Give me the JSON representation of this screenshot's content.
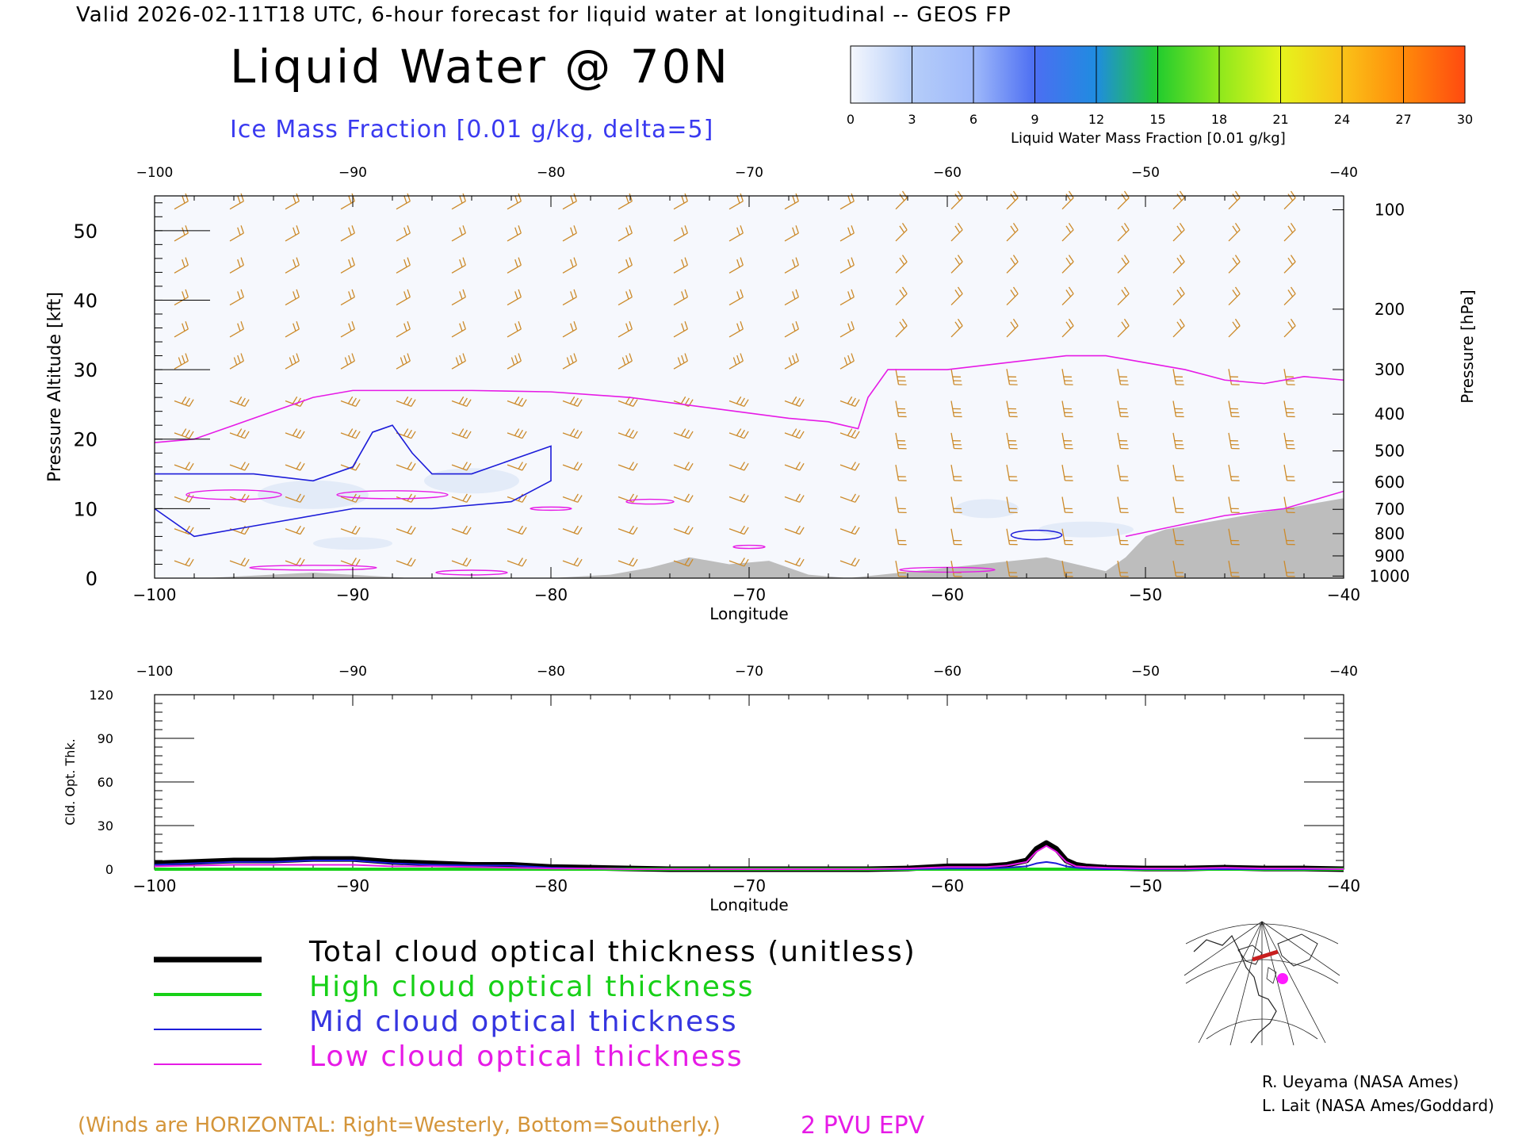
{
  "header": "Valid 2026-02-11T18 UTC, 6-hour forecast for liquid water at longitudinal -- GEOS FP",
  "title": "Liquid Water @ 70N",
  "overlay_label": "Ice Mass Fraction [0.01 g/kg, delta=5]",
  "colorbar": {
    "label": "Liquid Water Mass Fraction [0.01 g/kg]",
    "ticks": [
      "0",
      "3",
      "6",
      "9",
      "12",
      "15",
      "18",
      "21",
      "24",
      "27",
      "30"
    ],
    "colors": [
      "#f4f7fd",
      "#b5cdf9",
      "#9fb9fa",
      "#4c6ef2",
      "#1f8ce0",
      "#23cc2e",
      "#8ee81c",
      "#e6f41c",
      "#fac318",
      "#ff8a0a",
      "#ff4a10"
    ]
  },
  "chart_data": [
    {
      "type": "heatmap",
      "xlabel": "Longitude",
      "ylabel": "Pressure Altitude [kft]",
      "ylabel_right": "Pressure [hPa]",
      "x_ticks": [
        "−100",
        "−90",
        "−80",
        "−70",
        "−60",
        "−50",
        "−40"
      ],
      "x_tick_values": [
        -100,
        -90,
        -80,
        -70,
        -60,
        -50,
        -40
      ],
      "y_ticks": [
        "0",
        "10",
        "20",
        "30",
        "40",
        "50"
      ],
      "y_tick_values": [
        0,
        10,
        20,
        30,
        40,
        50
      ],
      "xlim": [
        -100,
        -40
      ],
      "ylim": [
        0,
        55
      ],
      "pressure_ticks": [
        {
          "label": "100",
          "kft": 53.0
        },
        {
          "label": "200",
          "kft": 38.7
        },
        {
          "label": "300",
          "kft": 30.0
        },
        {
          "label": "400",
          "kft": 23.6
        },
        {
          "label": "500",
          "kft": 18.3
        },
        {
          "label": "600",
          "kft": 13.8
        },
        {
          "label": "700",
          "kft": 9.9
        },
        {
          "label": "800",
          "kft": 6.4
        },
        {
          "label": "900",
          "kft": 3.2
        },
        {
          "label": "1000",
          "kft": 0.3
        }
      ],
      "epv_2pvu_line": {
        "x": [
          -100,
          -98,
          -96,
          -94,
          -92,
          -90,
          -88,
          -84,
          -80,
          -76,
          -72,
          -68,
          -66,
          -64.5,
          -64,
          -63,
          -60,
          -57,
          -54,
          -52,
          -50,
          -48,
          -46,
          -44,
          -42,
          -40
        ],
        "y": [
          19.5,
          20,
          22,
          24,
          26,
          27,
          27,
          27,
          26.8,
          26,
          24.5,
          23,
          22.5,
          21.5,
          26,
          30,
          30,
          31,
          32,
          32,
          31,
          30,
          28.5,
          28,
          29,
          28.5
        ]
      },
      "ice_contour": {
        "x": [
          -100,
          -95,
          -92,
          -90,
          -89,
          -88,
          -87,
          -86,
          -84,
          -82,
          -80,
          -80,
          -82,
          -86,
          -90,
          -94,
          -98,
          -100
        ],
        "y": [
          15,
          15,
          14,
          16,
          21,
          22,
          18,
          15,
          15,
          17,
          19,
          14,
          11,
          10,
          10,
          8,
          6,
          10
        ]
      },
      "terrain": {
        "x": [
          -100,
          -97.5,
          -92,
          -87,
          -80,
          -77,
          -75,
          -73,
          -71,
          -69,
          -67,
          -65,
          -55,
          -52,
          -51,
          -50,
          -49,
          -47,
          -45,
          -43,
          -40
        ],
        "y": [
          0,
          0,
          0.8,
          0,
          0,
          0.5,
          1.5,
          3,
          2,
          2.5,
          0.5,
          0,
          3,
          1,
          3,
          6,
          7,
          8,
          9,
          10,
          11.5
        ]
      }
    },
    {
      "type": "line",
      "xlabel": "Longitude",
      "ylabel": "Cld. Opt. Thk.",
      "x_ticks": [
        "−100",
        "−90",
        "−80",
        "−70",
        "−60",
        "−50",
        "−40"
      ],
      "x_tick_values": [
        -100,
        -90,
        -80,
        -70,
        -60,
        -50,
        -40
      ],
      "y_ticks": [
        "0",
        "30",
        "60",
        "90",
        "120"
      ],
      "y_tick_values": [
        0,
        30,
        60,
        90,
        120
      ],
      "xlim": [
        -100,
        -40
      ],
      "ylim": [
        0,
        120
      ],
      "x": [
        -100,
        -98,
        -96,
        -94,
        -92,
        -90,
        -88,
        -86,
        -84,
        -82,
        -80,
        -78,
        -76,
        -74,
        -72,
        -70,
        -68,
        -66,
        -64,
        -62,
        -60,
        -58,
        -57,
        -56,
        -55.5,
        -55,
        -54.5,
        -54,
        -53.5,
        -53,
        -52,
        -50,
        -48,
        -46,
        -44,
        -42,
        -40
      ],
      "series": [
        {
          "name": "Total cloud optical thickness (unitless)",
          "color": "#000000",
          "values": [
            4,
            5,
            6,
            6,
            7,
            7,
            5,
            4,
            3,
            3,
            1.5,
            1,
            0.5,
            0,
            0,
            0,
            0,
            0,
            0,
            0.5,
            2,
            2,
            3,
            6,
            14,
            18,
            14,
            6,
            3,
            2,
            1,
            0.5,
            0.5,
            1,
            0.5,
            0.5,
            0
          ]
        },
        {
          "name": "High cloud optical thickness",
          "color": "#17d017",
          "values": [
            0,
            0,
            0,
            0,
            0,
            0,
            0,
            0,
            0,
            0,
            0,
            0,
            0,
            0,
            0,
            0,
            0,
            0,
            0,
            0,
            0,
            0,
            0,
            0,
            0,
            0,
            0,
            0,
            0,
            0,
            0,
            0,
            0,
            0,
            0,
            0,
            0
          ]
        },
        {
          "name": "Mid cloud optical thickness",
          "color": "#1c1cd9",
          "values": [
            3,
            4,
            5,
            5,
            6,
            6,
            4,
            3,
            2.5,
            2.5,
            1,
            0.5,
            0,
            0,
            0,
            0,
            0,
            0,
            0,
            0,
            0.5,
            0.5,
            1,
            2,
            4,
            5,
            4,
            2,
            1,
            0.5,
            0,
            0,
            0,
            0,
            0,
            0,
            0
          ]
        },
        {
          "name": "Low cloud optical thickness",
          "color": "#e61be6",
          "values": [
            2,
            2.5,
            3,
            3,
            3,
            3,
            2,
            2,
            1.5,
            1,
            0.5,
            0.5,
            0,
            0,
            0,
            0,
            0,
            0,
            0,
            0.5,
            1.5,
            1.5,
            2.5,
            5,
            12,
            16,
            12,
            5,
            2,
            1.5,
            1,
            0.5,
            0.5,
            1,
            0.5,
            0.5,
            0
          ]
        }
      ]
    }
  ],
  "legend": {
    "total": "Total cloud optical thickness (unitless)",
    "high": "High cloud optical thickness",
    "mid": "Mid cloud optical thickness",
    "low": "Low cloud optical thickness"
  },
  "winds_note": "(Winds are HORIZONTAL: Right=Westerly, Bottom=Southerly.)",
  "pvu_label": "2 PVU EPV",
  "credits": [
    "R. Ueyama (NASA Ames)",
    "L. Lait (NASA Ames/Goddard)"
  ]
}
